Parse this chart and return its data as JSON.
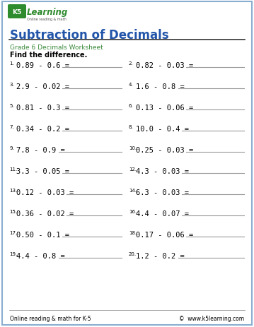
{
  "title": "Subtraction of Decimals",
  "subtitle": "Grade 6 Decimals Worksheet",
  "instruction": "Find the difference.",
  "title_color": "#2255AA",
  "subtitle_color": "#3A8A3A",
  "border_color": "#8AAED0",
  "footer_left": "Online reading & math for K-5",
  "footer_right": "©  www.k5learning.com",
  "problems_left": [
    "0.89 - 0.6 =",
    "2.9 - 0.02 =",
    "0.81 - 0.3 =",
    "0.34 - 0.2 =",
    "7.8 - 0.9 =",
    "3.3 - 0.05 =",
    "0.12 - 0.03 =",
    "0.36 - 0.02 =",
    "0.50 - 0.1 =",
    "4.4 - 0.8 ="
  ],
  "problems_right": [
    "0.82 - 0.03 =",
    "1.6 - 0.8 =",
    "0.13 - 0.06 =",
    "10.0 - 0.4 =",
    "0.25 - 0.03 =",
    "4.3 - 0.03 =",
    "6.3 - 0.03 =",
    "4.4 - 0.07 =",
    "0.17 - 0.06 =",
    "1.2 - 0.2 ="
  ],
  "nums_left": [
    1,
    3,
    5,
    7,
    9,
    11,
    13,
    15,
    17,
    19
  ],
  "nums_right": [
    2,
    4,
    6,
    8,
    10,
    12,
    14,
    16,
    18,
    20
  ],
  "bg_color": "#FFFFFF",
  "text_color": "#000000",
  "answer_line_color": "#999999",
  "footer_line_color": "#999999",
  "title_line_color": "#333333",
  "logo_box_color": "#2E8B2E",
  "logo_text_color": "#2E8B2E"
}
